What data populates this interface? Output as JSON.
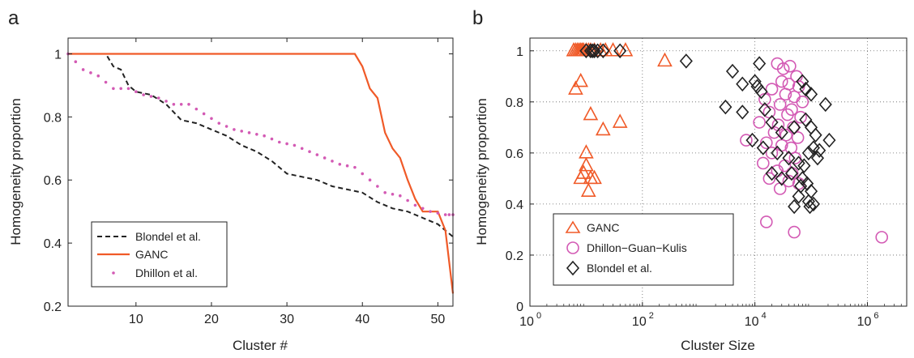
{
  "chart_data": [
    {
      "panel": "a",
      "type": "line",
      "xlabel": "Cluster #",
      "ylabel": "Homogeneity proportion",
      "xlim": [
        1,
        52
      ],
      "ylim": [
        0.2,
        1.05
      ],
      "xticks": [
        10,
        20,
        30,
        40,
        50
      ],
      "yticks": [
        0.2,
        0.4,
        0.6,
        0.8,
        1
      ],
      "ytick_labels": [
        "0.2",
        "0.4",
        "0.6",
        "0.8",
        "1"
      ],
      "legend": {
        "position": "bottom-left",
        "entries": [
          "Blondel et al.",
          "GANC",
          "Dhillon et al."
        ]
      },
      "series": [
        {
          "name": "Blondel et al.",
          "style": "dashed",
          "color": "#222222",
          "x": [
            1,
            6,
            7,
            8,
            9,
            10,
            12,
            14,
            16,
            18,
            20,
            22,
            24,
            26,
            28,
            30,
            32,
            34,
            36,
            38,
            40,
            42,
            44,
            46,
            48,
            50,
            52
          ],
          "y": [
            1,
            1,
            0.96,
            0.95,
            0.9,
            0.88,
            0.87,
            0.84,
            0.79,
            0.78,
            0.76,
            0.74,
            0.71,
            0.69,
            0.66,
            0.62,
            0.61,
            0.6,
            0.58,
            0.57,
            0.56,
            0.53,
            0.51,
            0.5,
            0.48,
            0.46,
            0.42
          ]
        },
        {
          "name": "GANC",
          "style": "solid",
          "color": "#f05a28",
          "x": [
            1,
            39,
            40,
            41,
            42,
            43,
            44,
            45,
            46,
            47,
            48,
            49,
            50,
            51,
            52
          ],
          "y": [
            1,
            1,
            0.96,
            0.89,
            0.86,
            0.75,
            0.7,
            0.67,
            0.6,
            0.54,
            0.5,
            0.5,
            0.5,
            0.44,
            0.24
          ]
        },
        {
          "name": "Dhillon et al.",
          "style": "dotted",
          "color": "#d35ab4",
          "x": [
            1,
            3,
            5,
            7,
            9,
            11,
            13,
            15,
            17,
            19,
            21,
            23,
            25,
            27,
            29,
            31,
            33,
            35,
            37,
            39,
            41,
            43,
            45,
            47,
            49,
            51,
            52
          ],
          "y": [
            1,
            0.95,
            0.93,
            0.89,
            0.89,
            0.87,
            0.86,
            0.84,
            0.84,
            0.81,
            0.78,
            0.76,
            0.75,
            0.74,
            0.72,
            0.71,
            0.69,
            0.67,
            0.65,
            0.64,
            0.6,
            0.56,
            0.55,
            0.52,
            0.5,
            0.49,
            0.49
          ]
        }
      ]
    },
    {
      "panel": "b",
      "type": "scatter",
      "xlabel": "Cluster Size",
      "ylabel": "Homogeneity proportion",
      "xscale": "log",
      "xlim": [
        1,
        5000000
      ],
      "ylim": [
        0,
        1.05
      ],
      "xticks": [
        1,
        100,
        10000,
        1000000
      ],
      "xtick_bases": [
        "10",
        "10",
        "10",
        "10"
      ],
      "xtick_exponents": [
        "0",
        "2",
        "4",
        "6"
      ],
      "yticks": [
        0,
        0.2,
        0.4,
        0.6,
        0.8,
        1
      ],
      "ytick_labels": [
        "0",
        "0.2",
        "0.4",
        "0.6",
        "0.8",
        "1"
      ],
      "grid": true,
      "legend": {
        "position": "bottom-left",
        "entries": [
          "GANC",
          "Dhillon−Guan−Kulis",
          "Blondel et al."
        ]
      },
      "series": [
        {
          "name": "GANC",
          "marker": "triangle",
          "color": "#f05a28",
          "points": [
            [
              6,
              1
            ],
            [
              6.5,
              1
            ],
            [
              7,
              1
            ],
            [
              7.5,
              1
            ],
            [
              8,
              1
            ],
            [
              8.5,
              1
            ],
            [
              9,
              1
            ],
            [
              10,
              1
            ],
            [
              11,
              1
            ],
            [
              12,
              1
            ],
            [
              14,
              1
            ],
            [
              18,
              1
            ],
            [
              22,
              1
            ],
            [
              30,
              1
            ],
            [
              50,
              1
            ],
            [
              250,
              0.96
            ],
            [
              6.5,
              0.85
            ],
            [
              8,
              0.88
            ],
            [
              12,
              0.75
            ],
            [
              20,
              0.69
            ],
            [
              40,
              0.72
            ],
            [
              10,
              0.6
            ],
            [
              10,
              0.55
            ],
            [
              12,
              0.5
            ],
            [
              8,
              0.5
            ],
            [
              11,
              0.45
            ],
            [
              9,
              0.52
            ],
            [
              14,
              0.5
            ]
          ]
        },
        {
          "name": "Dhillon−Guan−Kulis",
          "marker": "circle",
          "color": "#d35ab4",
          "points": [
            [
              25000,
              0.95
            ],
            [
              32000,
              0.93
            ],
            [
              42000,
              0.94
            ],
            [
              55000,
              0.9
            ],
            [
              30000,
              0.88
            ],
            [
              40000,
              0.87
            ],
            [
              60000,
              0.86
            ],
            [
              20000,
              0.85
            ],
            [
              35000,
              0.83
            ],
            [
              50000,
              0.82
            ],
            [
              70000,
              0.8
            ],
            [
              15000,
              0.81
            ],
            [
              28000,
              0.79
            ],
            [
              45000,
              0.77
            ],
            [
              18000,
              0.76
            ],
            [
              38000,
              0.75
            ],
            [
              65000,
              0.74
            ],
            [
              12000,
              0.72
            ],
            [
              26000,
              0.71
            ],
            [
              48000,
              0.7
            ],
            [
              22000,
              0.68
            ],
            [
              36000,
              0.67
            ],
            [
              58000,
              0.66
            ],
            [
              7000,
              0.65
            ],
            [
              16000,
              0.64
            ],
            [
              30000,
              0.63
            ],
            [
              44000,
              0.62
            ],
            [
              20000,
              0.6
            ],
            [
              52000,
              0.58
            ],
            [
              14000,
              0.56
            ],
            [
              34000,
              0.55
            ],
            [
              25000,
              0.53
            ],
            [
              46000,
              0.52
            ],
            [
              18000,
              0.5
            ],
            [
              40000,
              0.49
            ],
            [
              60000,
              0.48
            ],
            [
              28000,
              0.46
            ],
            [
              16000,
              0.33
            ],
            [
              50000,
              0.29
            ],
            [
              1800000,
              0.27
            ]
          ]
        },
        {
          "name": "Blondel et al.",
          "marker": "diamond",
          "color": "#222222",
          "points": [
            [
              10,
              1
            ],
            [
              12,
              1
            ],
            [
              13,
              1
            ],
            [
              14,
              1
            ],
            [
              16,
              1
            ],
            [
              20,
              1
            ],
            [
              40,
              1
            ],
            [
              600,
              0.96
            ],
            [
              12000,
              0.95
            ],
            [
              4000,
              0.92
            ],
            [
              6000,
              0.87
            ],
            [
              10000,
              0.88
            ],
            [
              3000,
              0.78
            ],
            [
              6000,
              0.76
            ],
            [
              15000,
              0.77
            ],
            [
              11000,
              0.86
            ],
            [
              13000,
              0.84
            ],
            [
              70000,
              0.88
            ],
            [
              80000,
              0.85
            ],
            [
              100000,
              0.83
            ],
            [
              180000,
              0.79
            ],
            [
              9000,
              0.65
            ],
            [
              14000,
              0.62
            ],
            [
              20000,
              0.72
            ],
            [
              30000,
              0.68
            ],
            [
              50000,
              0.7
            ],
            [
              80000,
              0.73
            ],
            [
              100000,
              0.7
            ],
            [
              120000,
              0.67
            ],
            [
              210000,
              0.65
            ],
            [
              25000,
              0.6
            ],
            [
              40000,
              0.58
            ],
            [
              60000,
              0.56
            ],
            [
              75000,
              0.55
            ],
            [
              90000,
              0.6
            ],
            [
              110000,
              0.62
            ],
            [
              140000,
              0.61
            ],
            [
              30000,
              0.5
            ],
            [
              45000,
              0.52
            ],
            [
              70000,
              0.5
            ],
            [
              85000,
              0.48
            ],
            [
              100000,
              0.45
            ],
            [
              60000,
              0.43
            ],
            [
              90000,
              0.41
            ],
            [
              95000,
              0.39
            ],
            [
              110000,
              0.4
            ],
            [
              50000,
              0.39
            ],
            [
              20000,
              0.52
            ],
            [
              65000,
              0.47
            ],
            [
              130000,
              0.58
            ]
          ]
        }
      ]
    }
  ]
}
